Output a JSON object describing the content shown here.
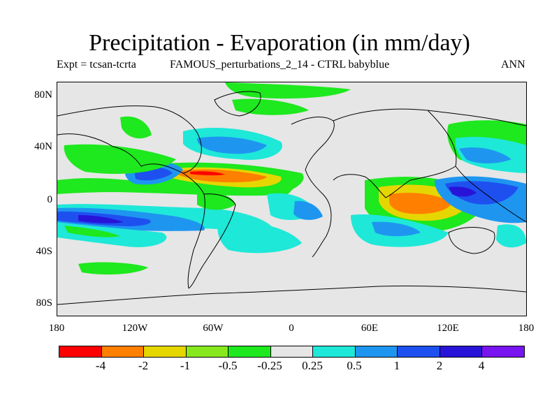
{
  "title": "Precipitation - Evaporation (in mm/day)",
  "subtitle_left": "Expt = tcsan-tcrta",
  "subtitle_center": "FAMOUS_perturbations_2_14 - CTRL babyblue",
  "subtitle_right": "ANN",
  "y_axis": {
    "labels": [
      "80N",
      "40N",
      "0",
      "40S",
      "80S"
    ],
    "values": [
      80,
      40,
      0,
      -40,
      -80
    ],
    "range": [
      -90,
      90
    ]
  },
  "x_axis": {
    "labels": [
      "180",
      "120W",
      "60W",
      "0",
      "60E",
      "120E",
      "180"
    ],
    "values": [
      -180,
      -120,
      -60,
      0,
      60,
      120,
      180
    ],
    "range": [
      -180,
      180
    ]
  },
  "colorbar": {
    "colors": [
      "#ff0000",
      "#ff7f00",
      "#e6d600",
      "#88e81e",
      "#1ee81e",
      "#e6e6e6",
      "#1ee8d8",
      "#1e96f0",
      "#1e50f0",
      "#2814d8",
      "#7814f0"
    ],
    "labels": [
      "-4",
      "-2",
      "-1",
      "-0.5",
      "-0.25",
      "0.25",
      "0.5",
      "1",
      "2",
      "4"
    ]
  },
  "background_color": "#e6e6e6"
}
